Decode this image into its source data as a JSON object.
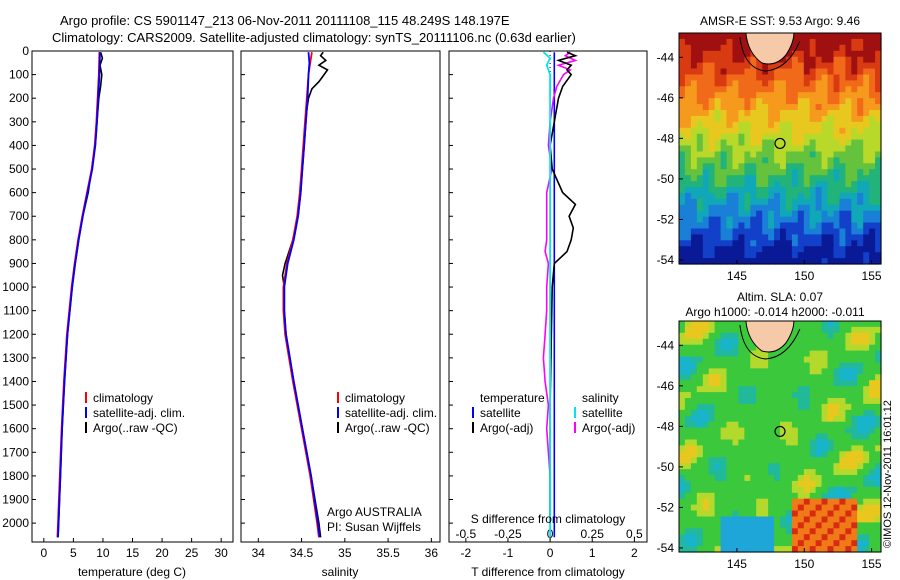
{
  "header": {
    "line1": "Argo profile: CS 5901147_213 06-Nov-2011 20111108_115 48.249S 148.197E",
    "line2": "Climatology: CARS2009. Satellite-adjusted climatology: synTS_20111106.nc (0.63d earlier)"
  },
  "side_stamp": "©IMOS 12-Nov-2011 16:01:12",
  "legend_profiles": {
    "climatology": "climatology",
    "satellite": "satellite-adj. clim.",
    "argo": "Argo(..raw -QC)"
  },
  "legend_diff": {
    "temperature_header": "temperature",
    "salinity_header": "salinity",
    "satellite": "satellite",
    "argo_adj": "Argo(-adj)"
  },
  "float_info": {
    "line1": "Argo AUSTRALIA",
    "line2": "PI: Susan Wijffels"
  },
  "colors": {
    "climatology": "#ff0000",
    "satellite": "#0000ff",
    "argo": "#000000",
    "sal_satellite": "#00e5ee",
    "sal_argo": "#ff00ff"
  },
  "chart_data": [
    {
      "type": "line",
      "name": "temperature",
      "xlabel": "temperature (deg C)",
      "ylabel": "",
      "xlim": [
        -2,
        32
      ],
      "ylim": [
        2080,
        0
      ],
      "xticks": [
        0,
        5,
        10,
        15,
        20,
        25,
        30
      ],
      "yticks": [
        0,
        100,
        200,
        300,
        400,
        500,
        600,
        700,
        800,
        900,
        1000,
        1100,
        1200,
        1300,
        1400,
        1500,
        1600,
        1700,
        1800,
        1900,
        2000
      ],
      "series": [
        {
          "name": "climatology",
          "depth": [
            5,
            100,
            200,
            300,
            400,
            500,
            600,
            700,
            800,
            900,
            1000,
            1200,
            1400,
            1600,
            1800,
            2000,
            2060
          ],
          "values": [
            9.4,
            9.3,
            9.1,
            8.9,
            8.6,
            8.1,
            7.3,
            6.5,
            5.8,
            5.2,
            4.7,
            3.9,
            3.4,
            3.0,
            2.7,
            2.4,
            2.3
          ]
        },
        {
          "name": "satellite-adj. clim.",
          "depth": [
            5,
            100,
            200,
            300,
            400,
            500,
            600,
            700,
            800,
            900,
            1000,
            1200,
            1400,
            1600,
            1800,
            2000,
            2060
          ],
          "values": [
            9.5,
            9.4,
            9.2,
            9.0,
            8.7,
            8.2,
            7.4,
            6.6,
            5.9,
            5.3,
            4.8,
            4.0,
            3.5,
            3.1,
            2.8,
            2.5,
            2.4
          ]
        },
        {
          "name": "Argo(..raw -QC)",
          "depth": [
            5,
            30,
            60,
            100,
            150,
            200,
            300,
            400,
            500,
            600,
            700,
            800,
            900,
            1000,
            1200,
            1400,
            1600,
            1800,
            2000,
            2060
          ],
          "values": [
            9.6,
            9.9,
            9.5,
            9.8,
            9.6,
            9.3,
            9.0,
            8.7,
            8.1,
            7.5,
            6.6,
            5.9,
            5.3,
            4.8,
            4.0,
            3.5,
            3.1,
            2.8,
            2.5,
            2.4
          ]
        }
      ]
    },
    {
      "type": "line",
      "name": "salinity",
      "xlabel": "salinity",
      "xlim": [
        33.8,
        36.1
      ],
      "ylim": [
        2080,
        0
      ],
      "xticks": [
        34,
        34.5,
        35,
        35.5,
        36
      ],
      "series": [
        {
          "name": "climatology",
          "depth": [
            5,
            50,
            100,
            200,
            300,
            400,
            500,
            600,
            700,
            800,
            900,
            1000,
            1100,
            1200,
            1400,
            1600,
            1800,
            2000,
            2060
          ],
          "values": [
            34.62,
            34.6,
            34.58,
            34.56,
            34.54,
            34.52,
            34.5,
            34.48,
            34.45,
            34.4,
            34.33,
            34.29,
            34.29,
            34.31,
            34.4,
            34.5,
            34.6,
            34.68,
            34.7
          ]
        },
        {
          "name": "satellite-adj. clim.",
          "depth": [
            5,
            50,
            100,
            200,
            300,
            400,
            500,
            600,
            700,
            800,
            900,
            1000,
            1100,
            1200,
            1400,
            1600,
            1800,
            2000,
            2060
          ],
          "values": [
            34.58,
            34.59,
            34.58,
            34.57,
            34.55,
            34.53,
            34.51,
            34.49,
            34.46,
            34.41,
            34.34,
            34.3,
            34.3,
            34.32,
            34.41,
            34.51,
            34.61,
            34.69,
            34.71
          ]
        },
        {
          "name": "Argo(..raw -QC)",
          "depth": [
            5,
            20,
            40,
            60,
            80,
            100,
            130,
            160,
            200,
            250,
            300,
            400,
            500,
            600,
            700,
            800,
            900,
            950,
            1000,
            1100,
            1200,
            1400,
            1600,
            1800,
            2000,
            2060
          ],
          "values": [
            34.75,
            34.72,
            34.78,
            34.7,
            34.8,
            34.76,
            34.7,
            34.62,
            34.58,
            34.56,
            34.55,
            34.53,
            34.51,
            34.49,
            34.46,
            34.4,
            34.31,
            34.28,
            34.3,
            34.3,
            34.32,
            34.41,
            34.51,
            34.61,
            34.7,
            34.72
          ]
        }
      ]
    },
    {
      "type": "line",
      "name": "differences",
      "xlabel": "T difference from climatology",
      "xlabel_top": "S difference from climatology",
      "xlim": [
        -2.4,
        2.3
      ],
      "ylim": [
        2080,
        0
      ],
      "xticks": [
        -2,
        -1,
        0,
        1,
        2
      ],
      "xticks_top": [
        "-0.5",
        "-0.25",
        "0",
        "0.25",
        "0.5"
      ],
      "series": [
        {
          "name": "temperature satellite",
          "depth": [
            5,
            100,
            300,
            600,
            1000,
            1500,
            2000,
            2060
          ],
          "values": [
            0.1,
            0.1,
            0.1,
            0.1,
            0.1,
            0.1,
            0.1,
            0.1
          ]
        },
        {
          "name": "temperature Argo(-adj)",
          "depth": [
            5,
            20,
            40,
            60,
            80,
            100,
            150,
            200,
            300,
            400,
            500,
            600,
            650,
            700,
            750,
            800,
            850,
            900,
            1000,
            1500,
            2000
          ],
          "values": [
            0.4,
            0.6,
            0.2,
            0.5,
            0.4,
            0.5,
            0.3,
            0.2,
            0.1,
            0.0,
            0.05,
            0.3,
            0.6,
            0.45,
            0.55,
            0.5,
            0.4,
            0.1,
            0.05,
            0.0,
            0.0
          ]
        },
        {
          "name": "salinity satellite",
          "depth": [
            5,
            30,
            60,
            100,
            200,
            400,
            800,
            1200,
            1600,
            2000,
            2060
          ],
          "values": [
            -0.04,
            0.0,
            -0.02,
            0.0,
            0.0,
            0.0,
            0.0,
            0.0,
            0.0,
            0.0,
            0.0
          ]
        },
        {
          "name": "salinity Argo(-adj)",
          "depth": [
            5,
            20,
            40,
            60,
            80,
            100,
            150,
            200,
            300,
            400,
            500,
            600,
            700,
            800,
            850,
            900,
            1000,
            1100,
            1200,
            1300,
            1400,
            1500,
            1600,
            1700,
            1800,
            2000
          ],
          "values": [
            0.12,
            0.09,
            0.15,
            0.05,
            0.12,
            0.08,
            0.04,
            0.02,
            0.0,
            -0.01,
            0.01,
            -0.02,
            -0.02,
            -0.02,
            -0.03,
            -0.01,
            -0.02,
            -0.02,
            -0.03,
            -0.04,
            -0.03,
            -0.01,
            -0.02,
            -0.01,
            0.0,
            0.0
          ]
        }
      ]
    },
    {
      "type": "heatmap",
      "name": "sst_map",
      "title": "AMSR-E SST: 9.53 Argo: 9.46",
      "xlim": [
        140.7,
        155.7
      ],
      "ylim": [
        -54.2,
        -42.8
      ],
      "xticks": [
        145,
        150,
        155
      ],
      "yticks": [
        -44,
        -46,
        -48,
        -50,
        -52,
        -54
      ],
      "argo_position": {
        "lon": 148.2,
        "lat": -48.25
      }
    },
    {
      "type": "heatmap",
      "name": "sla_map",
      "title": "Altim. SLA: 0.07",
      "subtitle": "Argo h1000: -0.014 h2000: -0.011",
      "xlim": [
        140.7,
        155.7
      ],
      "ylim": [
        -54.2,
        -42.8
      ],
      "xticks": [
        145,
        150,
        155
      ],
      "yticks": [
        -44,
        -46,
        -48,
        -50,
        -52,
        -54
      ],
      "argo_position": {
        "lon": 148.2,
        "lat": -48.25
      }
    }
  ]
}
